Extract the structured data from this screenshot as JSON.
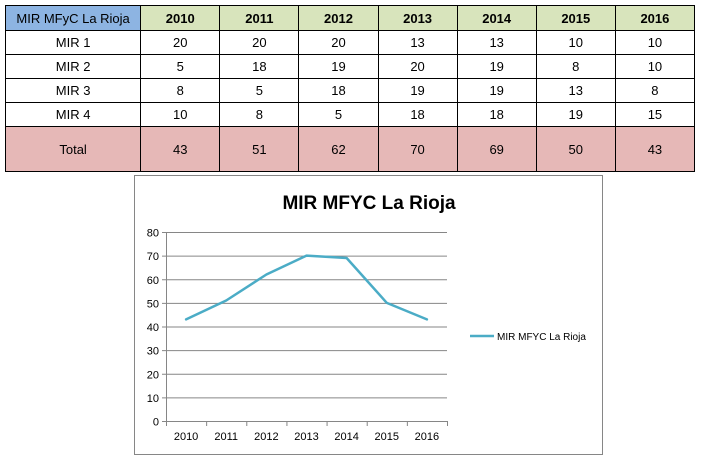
{
  "table": {
    "corner": "MIR MFyC La Rioja",
    "years": [
      "2010",
      "2011",
      "2012",
      "2013",
      "2014",
      "2015",
      "2016"
    ],
    "rows": [
      {
        "label": "MIR 1",
        "values": [
          "20",
          "20",
          "20",
          "13",
          "13",
          "10",
          "10"
        ]
      },
      {
        "label": "MIR 2",
        "values": [
          "5",
          "18",
          "19",
          "20",
          "19",
          "8",
          "10"
        ]
      },
      {
        "label": "MIR 3",
        "values": [
          "8",
          "5",
          "18",
          "19",
          "19",
          "13",
          "8"
        ]
      },
      {
        "label": "MIR 4",
        "values": [
          "10",
          "8",
          "5",
          "18",
          "18",
          "19",
          "15"
        ]
      }
    ],
    "total": {
      "label": "Total",
      "values": [
        "43",
        "51",
        "62",
        "70",
        "69",
        "50",
        "43"
      ]
    }
  },
  "chart_data": {
    "type": "line",
    "title": "MIR MFYC La Rioja",
    "xlabel": "",
    "ylabel": "",
    "x": [
      "2010",
      "2011",
      "2012",
      "2013",
      "2014",
      "2015",
      "2016"
    ],
    "y_ticks": [
      "0",
      "10",
      "20",
      "30",
      "40",
      "50",
      "60",
      "70",
      "80"
    ],
    "ylim": [
      0,
      80
    ],
    "grid": true,
    "legend": "right",
    "series": [
      {
        "name": "MIR MFYC La Rioja",
        "values": [
          43,
          51,
          62,
          70,
          69,
          50,
          43
        ],
        "color": "#4bacc6"
      }
    ]
  }
}
